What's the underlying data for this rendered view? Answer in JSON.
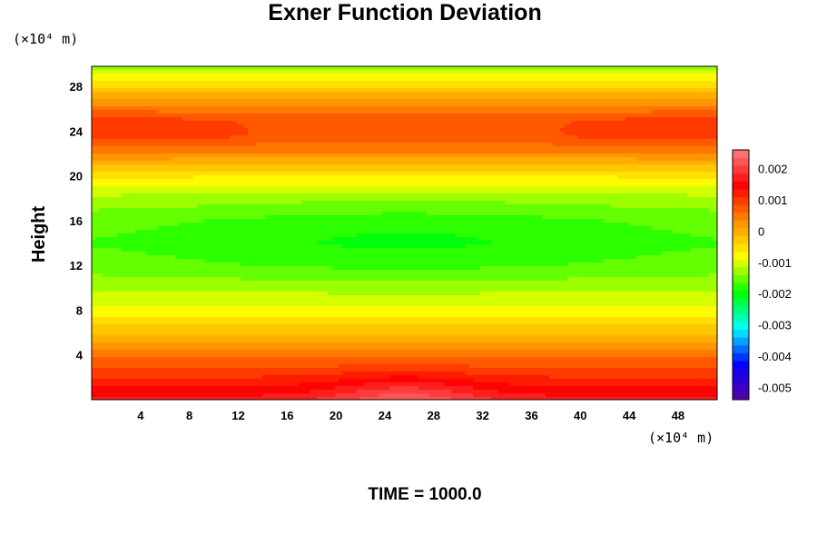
{
  "chart_data": {
    "type": "heatmap",
    "title": "Exner Function Deviation",
    "ylabel": "Height",
    "x_unit_label": "(×10⁴ m)",
    "y_unit_label": "(×10⁴ m)",
    "x_ticks": [
      4,
      8,
      12,
      16,
      20,
      24,
      28,
      32,
      36,
      40,
      44,
      48
    ],
    "y_ticks": [
      4,
      8,
      12,
      16,
      20,
      24,
      28
    ],
    "xlim": [
      0,
      51.2
    ],
    "ylim": [
      0,
      29.8
    ],
    "colorbar": {
      "ticks": [
        0.002,
        0.001,
        0,
        -0.001,
        -0.002,
        -0.003,
        -0.004,
        -0.005
      ],
      "tick_labels": [
        "0.002",
        "0.001",
        "0",
        "-0.001",
        "-0.002",
        "-0.003",
        "-0.004",
        "-0.005"
      ],
      "range": [
        -0.0054,
        0.0026
      ],
      "levels": 32,
      "colors_top_to_bottom": [
        "#ff7f7f",
        "#ff0000",
        "#ff8c00",
        "#ffff00",
        "#00ff00",
        "#00ffff",
        "#0000ff",
        "#5a00a0"
      ]
    },
    "field_profile": {
      "height": [
        0,
        2,
        4,
        6,
        8,
        10,
        12,
        14,
        16,
        18,
        20,
        22,
        23.5,
        25,
        27,
        29.8
      ],
      "value": [
        0.0017,
        0.0011,
        0.0005,
        -0.0002,
        -0.0008,
        -0.0012,
        -0.0015,
        -0.0016,
        -0.0015,
        -0.0012,
        -0.0006,
        0.0003,
        0.0008,
        0.0008,
        0.0001,
        -0.0013
      ]
    },
    "features": [
      {
        "type": "max",
        "x": 25.6,
        "y": 0,
        "value": 0.0023
      },
      {
        "type": "min",
        "x": 25.6,
        "y": 14.5,
        "value": -0.0018
      }
    ],
    "footer": "TIME = 1000.0"
  }
}
